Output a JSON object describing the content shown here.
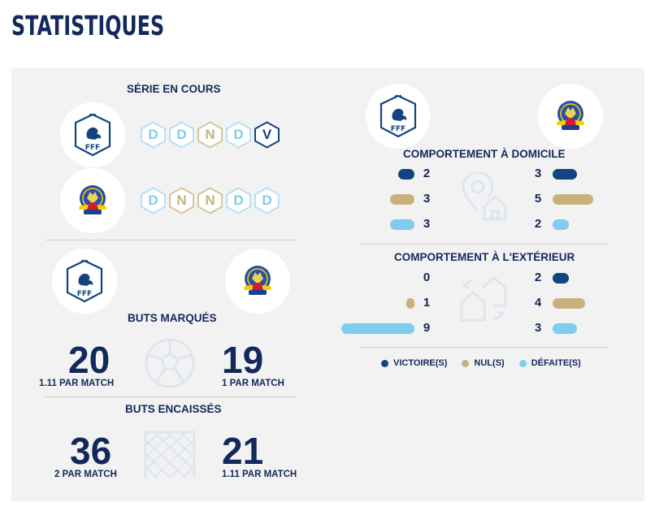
{
  "page_title": "STATISTIQUES",
  "colors": {
    "win": "#13447f",
    "draw": "#c8b17d",
    "loss": "#80ccef",
    "navy": "#13285b"
  },
  "serie": {
    "title": "SÉRIE EN COURS",
    "team1_results": [
      "D",
      "D",
      "N",
      "D",
      "V"
    ],
    "team2_results": [
      "D",
      "N",
      "N",
      "D",
      "D"
    ]
  },
  "buts_marques": {
    "title": "BUTS MARQUÉS",
    "team1": {
      "value": "20",
      "per_match": "1.11 PAR MATCH"
    },
    "team2": {
      "value": "19",
      "per_match": "1 PAR MATCH"
    }
  },
  "buts_encaisses": {
    "title": "BUTS ENCAISSÉS",
    "team1": {
      "value": "36",
      "per_match": "2 PAR MATCH"
    },
    "team2": {
      "value": "21",
      "per_match": "1.11 PAR MATCH"
    }
  },
  "domicile": {
    "title": "COMPORTEMENT À DOMICILE",
    "team1": {
      "victoires": "2",
      "nuls": "3",
      "defaites": "3"
    },
    "team2": {
      "victoires": "3",
      "nuls": "5",
      "defaites": "2"
    }
  },
  "exterieur": {
    "title": "COMPORTEMENT À L'EXTÉRIEUR",
    "team1": {
      "victoires": "0",
      "nuls": "1",
      "defaites": "9"
    },
    "team2": {
      "victoires": "2",
      "nuls": "4",
      "defaites": "3"
    }
  },
  "legend": {
    "win": "VICTOIRE(S)",
    "draw": "NUL(S)",
    "loss": "DÉFAITE(S)"
  },
  "logos": {
    "team1": "FFF",
    "team2_icon": "club-crest-icon"
  }
}
